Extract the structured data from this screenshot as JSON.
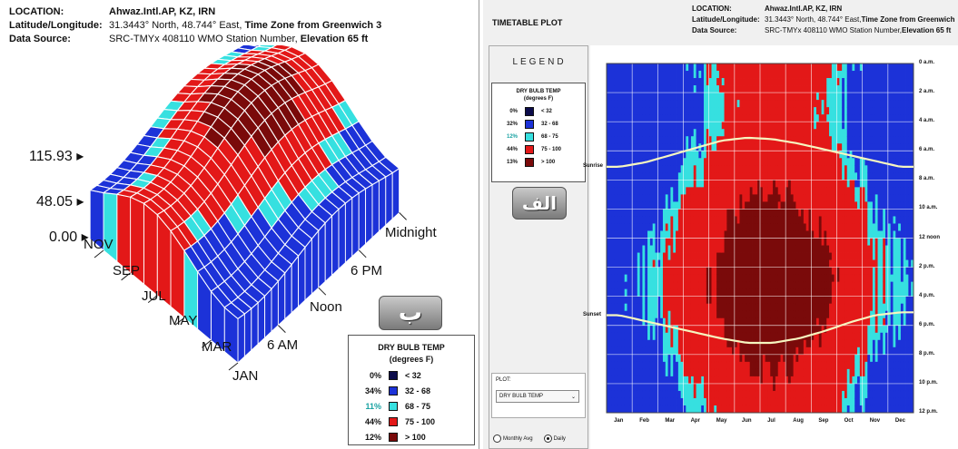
{
  "colors": {
    "lt32": "#0b0b4a",
    "b32_68": "#1c32d8",
    "b68_75": "#36e0e0",
    "b75_100": "#e31818",
    "gt100": "#7a0a0a",
    "surface_edge": "#ffffff",
    "sun_line": "#f6f6c0"
  },
  "left": {
    "location_label": "LOCATION:",
    "location_value": "Ahwaz.Intl.AP, KZ, IRN",
    "latlon_label": "Latitude/Longitude:",
    "latlon_value_1": "31.3443° North, 48.744° East, ",
    "latlon_value_2": "Time Zone from Greenwich 3",
    "source_label": "Data Source:",
    "source_value_1": "SRC-TMYx    408110 WMO Station Number, ",
    "source_value_2": "Elevation 65 ft",
    "z_max": "115.93",
    "z_mid": "48.05",
    "z_min": "0.00",
    "months": [
      "JAN",
      "MAR",
      "MAY",
      "JUL",
      "SEP",
      "NOV"
    ],
    "hours": [
      "6 AM",
      "Noon",
      "6 PM",
      "Midnight"
    ],
    "badge": "ب",
    "legend": {
      "title": "DRY BULB TEMP",
      "unit": "(degrees F)",
      "rows": [
        {
          "pct": "0%",
          "range": "< 32"
        },
        {
          "pct": "34%",
          "range": "32  -  68"
        },
        {
          "pct": "11%",
          "range": "68  -  75"
        },
        {
          "pct": "44%",
          "range": "75  -  100"
        },
        {
          "pct": "12%",
          "range": "> 100"
        }
      ]
    }
  },
  "right": {
    "title": "TIMETABLE PLOT",
    "location_label": "LOCATION:",
    "location_value": "Ahwaz.Intl.AP, KZ, IRN",
    "latlon_label": "Latitude/Longitude:",
    "latlon_value_1": "31.3443° North, 48.744° East, ",
    "latlon_value_2": "Time Zone from Greenwich",
    "source_label": "Data Source:",
    "source_value_1": "SRC-TMYx    408110 WMO Station Number, ",
    "source_value_2": "Elevation 65 ft",
    "legend_heading": "LEGEND",
    "badge": "الف",
    "legend": {
      "title": "DRY BULB TEMP",
      "unit": "(degrees F)",
      "rows": [
        {
          "pct": "0%",
          "range": "< 32"
        },
        {
          "pct": "32%",
          "range": "32  -  68"
        },
        {
          "pct": "12%",
          "range": "68  -  75"
        },
        {
          "pct": "44%",
          "range": "75  -  100"
        },
        {
          "pct": "13%",
          "range": "> 100"
        }
      ]
    },
    "plot_label": "PLOT:",
    "plot_select_value": "DRY BULB TEMP",
    "radio_monthly": "Monthly Avg",
    "radio_daily": "Daily",
    "sunrise_label": "Sunrise",
    "sunset_label": "Sunset"
  },
  "chart_data": [
    {
      "type": "surface3d",
      "variable": "DRY BULB TEMP",
      "unit": "degrees F",
      "z_ticks": [
        0.0,
        48.05,
        115.93
      ],
      "x_categories": [
        "JAN",
        "MAR",
        "MAY",
        "JUL",
        "SEP",
        "NOV"
      ],
      "y_categories": [
        "6 AM",
        "Noon",
        "6 PM",
        "Midnight"
      ],
      "legend_bins": [
        {
          "range": "< 32",
          "pct": 0
        },
        {
          "range": "32 - 68",
          "pct": 34
        },
        {
          "range": "68 - 75",
          "pct": 11
        },
        {
          "range": "75 - 100",
          "pct": 44
        },
        {
          "range": "> 100",
          "pct": 12
        }
      ]
    },
    {
      "type": "heatmap",
      "variable": "DRY BULB TEMP",
      "unit": "degrees F",
      "x_categories": [
        "Jan",
        "Feb",
        "Mar",
        "Apr",
        "May",
        "Jun",
        "Jul",
        "Aug",
        "Sep",
        "Oct",
        "Nov",
        "Dec"
      ],
      "y_categories": [
        "0 a.m.",
        "2 a.m.",
        "4 a.m.",
        "6 a.m.",
        "8 a.m.",
        "10 a.m.",
        "12 noon",
        "2 p.m.",
        "4 p.m.",
        "6 p.m.",
        "8 p.m.",
        "10 p.m.",
        "12 p.m."
      ],
      "legend_bins": [
        {
          "range": "< 32",
          "pct": 0
        },
        {
          "range": "32 - 68",
          "pct": 32
        },
        {
          "range": "68 - 75",
          "pct": 12
        },
        {
          "range": "75 - 100",
          "pct": 44
        },
        {
          "range": "> 100",
          "pct": 13
        }
      ],
      "sunrise_hour_by_month": [
        7.1,
        6.8,
        6.3,
        5.8,
        5.3,
        5.1,
        5.2,
        5.5,
        5.9,
        6.3,
        6.7,
        7.1
      ],
      "sunset_hour_by_month": [
        17.3,
        17.7,
        18.1,
        18.5,
        18.9,
        19.2,
        19.2,
        18.9,
        18.4,
        17.8,
        17.3,
        17.1
      ]
    }
  ]
}
